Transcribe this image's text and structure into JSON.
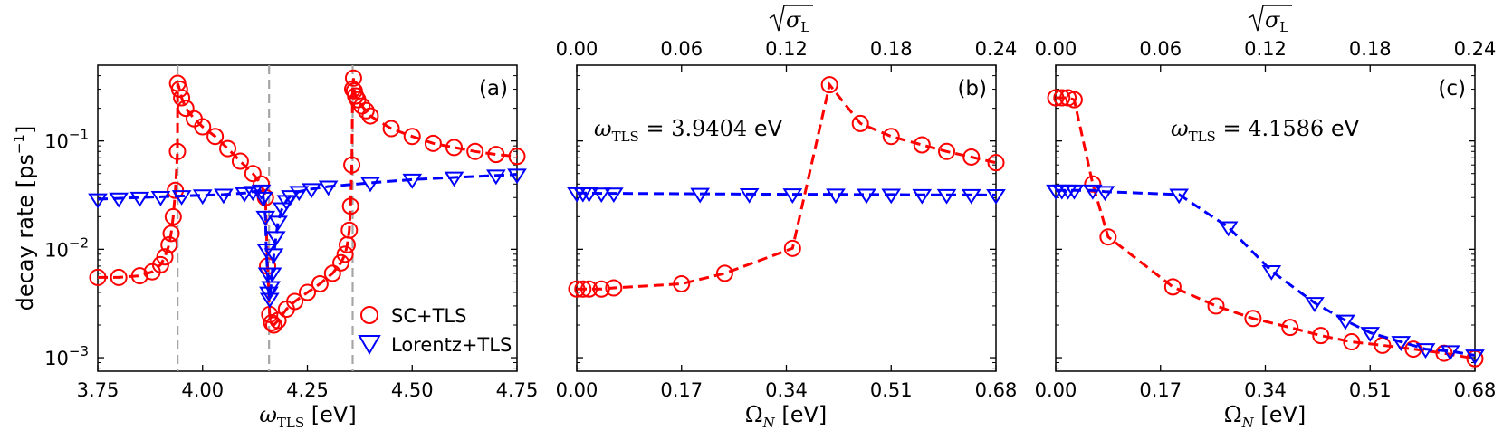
{
  "chart_data": [
    {
      "panel_label": "(a)",
      "type": "scatter",
      "xlabel_main": "ω",
      "xlabel_sub": "TLS",
      "xlabel_unit": " [eV]",
      "ylabel": "decay rate [ps",
      "ylabel_sup": "−1",
      "ylabel_close": "]",
      "yscale": "log",
      "xlim": [
        3.75,
        4.75
      ],
      "ylim": [
        0.00075,
        0.5
      ],
      "xticks": [
        "3.75",
        "4.00",
        "4.25",
        "4.50",
        "4.75"
      ],
      "yticks": [
        {
          "value": 0.001,
          "base": "10",
          "exp": "−3"
        },
        {
          "value": 0.01,
          "base": "10",
          "exp": "−2"
        },
        {
          "value": 0.1,
          "base": "10",
          "exp": "−1"
        }
      ],
      "vlines": [
        3.9404,
        4.1586,
        4.358
      ],
      "legend": {
        "position": "lower-right",
        "entries": [
          "SC+TLS",
          "Lorentz+TLS"
        ]
      },
      "series": [
        {
          "name": "SC+TLS",
          "color": "#ff0000",
          "marker": "circle",
          "x": [
            3.75,
            3.8,
            3.85,
            3.88,
            3.9,
            3.91,
            3.92,
            3.925,
            3.93,
            3.935,
            3.94,
            3.9404,
            3.945,
            3.95,
            3.96,
            3.98,
            4.0,
            4.03,
            4.06,
            4.09,
            4.12,
            4.14,
            4.15,
            4.155,
            4.16,
            4.165,
            4.17,
            4.18,
            4.2,
            4.22,
            4.25,
            4.28,
            4.31,
            4.33,
            4.34,
            4.345,
            4.35,
            4.353,
            4.356,
            4.358,
            4.36,
            4.362,
            4.365,
            4.37,
            4.38,
            4.39,
            4.4,
            4.45,
            4.5,
            4.55,
            4.6,
            4.65,
            4.7,
            4.75
          ],
          "y": [
            0.0055,
            0.0055,
            0.0057,
            0.0062,
            0.0072,
            0.0085,
            0.011,
            0.014,
            0.02,
            0.035,
            0.08,
            0.34,
            0.3,
            0.25,
            0.2,
            0.16,
            0.135,
            0.11,
            0.085,
            0.065,
            0.05,
            0.04,
            0.03,
            0.007,
            0.0025,
            0.0021,
            0.002,
            0.0022,
            0.0028,
            0.0033,
            0.004,
            0.0048,
            0.006,
            0.0075,
            0.009,
            0.011,
            0.015,
            0.025,
            0.06,
            0.3,
            0.38,
            0.29,
            0.26,
            0.24,
            0.21,
            0.19,
            0.17,
            0.13,
            0.11,
            0.095,
            0.087,
            0.08,
            0.075,
            0.072
          ]
        },
        {
          "name": "Lorentz+TLS",
          "color": "#0000ff",
          "marker": "triangle_down",
          "x": [
            3.75,
            3.8,
            3.85,
            3.9,
            3.95,
            4.0,
            4.05,
            4.1,
            4.12,
            4.14,
            4.145,
            4.15,
            4.152,
            4.155,
            4.158,
            4.16,
            4.163,
            4.166,
            4.17,
            4.175,
            4.18,
            4.19,
            4.2,
            4.21,
            4.23,
            4.26,
            4.3,
            4.4,
            4.5,
            4.6,
            4.7,
            4.75
          ],
          "y": [
            0.029,
            0.0295,
            0.03,
            0.0305,
            0.031,
            0.0315,
            0.032,
            0.033,
            0.034,
            0.035,
            0.03,
            0.02,
            0.01,
            0.006,
            0.004,
            0.0035,
            0.0045,
            0.006,
            0.009,
            0.013,
            0.018,
            0.024,
            0.028,
            0.031,
            0.034,
            0.036,
            0.038,
            0.041,
            0.044,
            0.046,
            0.048,
            0.049
          ]
        }
      ]
    },
    {
      "panel_label": "(b)",
      "type": "line",
      "annotation_main": "ω",
      "annotation_sub": "TLS",
      "annotation_eq": " = 3.9404 ",
      "annotation_unit": "eV",
      "xlabel_main": "Ω",
      "xlabel_sub": "N",
      "xlabel_unit": " [eV]",
      "top_label_main": "σ",
      "top_label_sub": "L",
      "yscale": "log",
      "xlim": [
        0,
        0.68
      ],
      "ylim": [
        0.00075,
        0.5
      ],
      "xticks": [
        "0.00",
        "0.17",
        "0.34",
        "0.51",
        "0.68"
      ],
      "top_ticks": [
        "0.00",
        "0.06",
        "0.12",
        "0.18",
        "0.24"
      ],
      "top_xlim": [
        0,
        0.24
      ],
      "series": [
        {
          "name": "SC+TLS",
          "color": "#ff0000",
          "marker": "circle",
          "x": [
            0.0,
            0.01,
            0.02,
            0.04,
            0.06,
            0.17,
            0.24,
            0.35,
            0.41,
            0.46,
            0.51,
            0.56,
            0.6,
            0.64,
            0.68
          ],
          "y": [
            0.0043,
            0.0043,
            0.0043,
            0.0043,
            0.0044,
            0.0048,
            0.006,
            0.0102,
            0.33,
            0.145,
            0.11,
            0.092,
            0.08,
            0.071,
            0.063
          ]
        },
        {
          "name": "Lorentz+TLS",
          "color": "#0000ff",
          "marker": "triangle_down",
          "x": [
            0.0,
            0.01,
            0.02,
            0.04,
            0.06,
            0.2,
            0.28,
            0.35,
            0.42,
            0.47,
            0.51,
            0.56,
            0.6,
            0.64,
            0.68
          ],
          "y": [
            0.033,
            0.033,
            0.033,
            0.0328,
            0.0328,
            0.0325,
            0.0323,
            0.0322,
            0.0321,
            0.032,
            0.032,
            0.0318,
            0.0318,
            0.0318,
            0.0317
          ]
        }
      ]
    },
    {
      "panel_label": "(c)",
      "type": "line",
      "annotation_main": "ω",
      "annotation_sub": "TLS",
      "annotation_eq": " = 4.1586 ",
      "annotation_unit": "eV",
      "xlabel_main": "Ω",
      "xlabel_sub": "N",
      "xlabel_unit": " [eV]",
      "top_label_main": "σ",
      "top_label_sub": "L",
      "yscale": "log",
      "xlim": [
        0,
        0.68
      ],
      "ylim": [
        0.00075,
        0.5
      ],
      "xticks": [
        "0.00",
        "0.17",
        "0.34",
        "0.51",
        "0.68"
      ],
      "top_ticks": [
        "0.00",
        "0.06",
        "0.12",
        "0.18",
        "0.24"
      ],
      "top_xlim": [
        0,
        0.24
      ],
      "series": [
        {
          "name": "SC+TLS",
          "color": "#ff0000",
          "marker": "circle",
          "x": [
            0.0,
            0.01,
            0.02,
            0.03,
            0.06,
            0.085,
            0.19,
            0.26,
            0.32,
            0.38,
            0.43,
            0.48,
            0.53,
            0.58,
            0.63,
            0.68
          ],
          "y": [
            0.25,
            0.25,
            0.25,
            0.24,
            0.04,
            0.013,
            0.0045,
            0.003,
            0.0023,
            0.0019,
            0.0016,
            0.0014,
            0.0013,
            0.0012,
            0.0011,
            0.00098
          ]
        },
        {
          "name": "Lorentz+TLS",
          "color": "#0000ff",
          "marker": "triangle_down",
          "x": [
            0.0,
            0.01,
            0.02,
            0.03,
            0.06,
            0.08,
            0.2,
            0.28,
            0.35,
            0.42,
            0.47,
            0.51,
            0.56,
            0.6,
            0.64,
            0.68
          ],
          "y": [
            0.035,
            0.035,
            0.035,
            0.035,
            0.035,
            0.034,
            0.032,
            0.016,
            0.0063,
            0.0032,
            0.0022,
            0.0017,
            0.0014,
            0.0012,
            0.00115,
            0.00105
          ]
        }
      ]
    }
  ]
}
